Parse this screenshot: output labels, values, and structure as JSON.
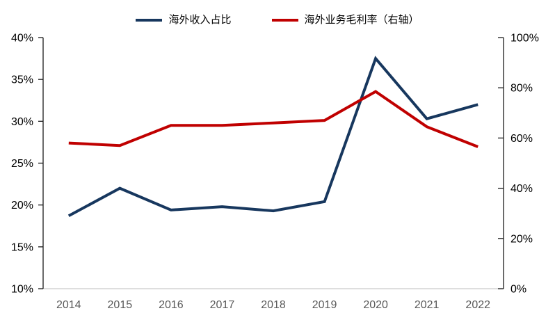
{
  "chart_data": {
    "type": "line",
    "title": "",
    "categories": [
      "2014",
      "2015",
      "2016",
      "2017",
      "2018",
      "2019",
      "2020",
      "2021",
      "2022"
    ],
    "series": [
      {
        "name": "海外收入占比",
        "axis": "left",
        "color": "#17375e",
        "values": [
          18.7,
          22.0,
          19.4,
          19.8,
          19.3,
          20.4,
          37.5,
          30.3,
          32.0
        ]
      },
      {
        "name": "海外业务毛利率（右轴）",
        "axis": "right",
        "color": "#c00000",
        "values": [
          58.0,
          57.0,
          65.0,
          65.0,
          66.0,
          67.0,
          78.5,
          64.5,
          56.5
        ]
      }
    ],
    "left_axis": {
      "min": 10,
      "max": 40,
      "step": 5,
      "labels": [
        "10%",
        "15%",
        "20%",
        "25%",
        "30%",
        "35%",
        "40%"
      ]
    },
    "right_axis": {
      "min": 0,
      "max": 100,
      "step": 20,
      "labels": [
        "0%",
        "20%",
        "40%",
        "60%",
        "80%",
        "100%"
      ]
    },
    "legend_position": "top",
    "grid": false,
    "line_width": 4,
    "colors": {
      "axis_line": "#1a1a1a",
      "baseline": "#c9c9c9",
      "x_label": "#595959",
      "y_label": "#000000"
    }
  }
}
